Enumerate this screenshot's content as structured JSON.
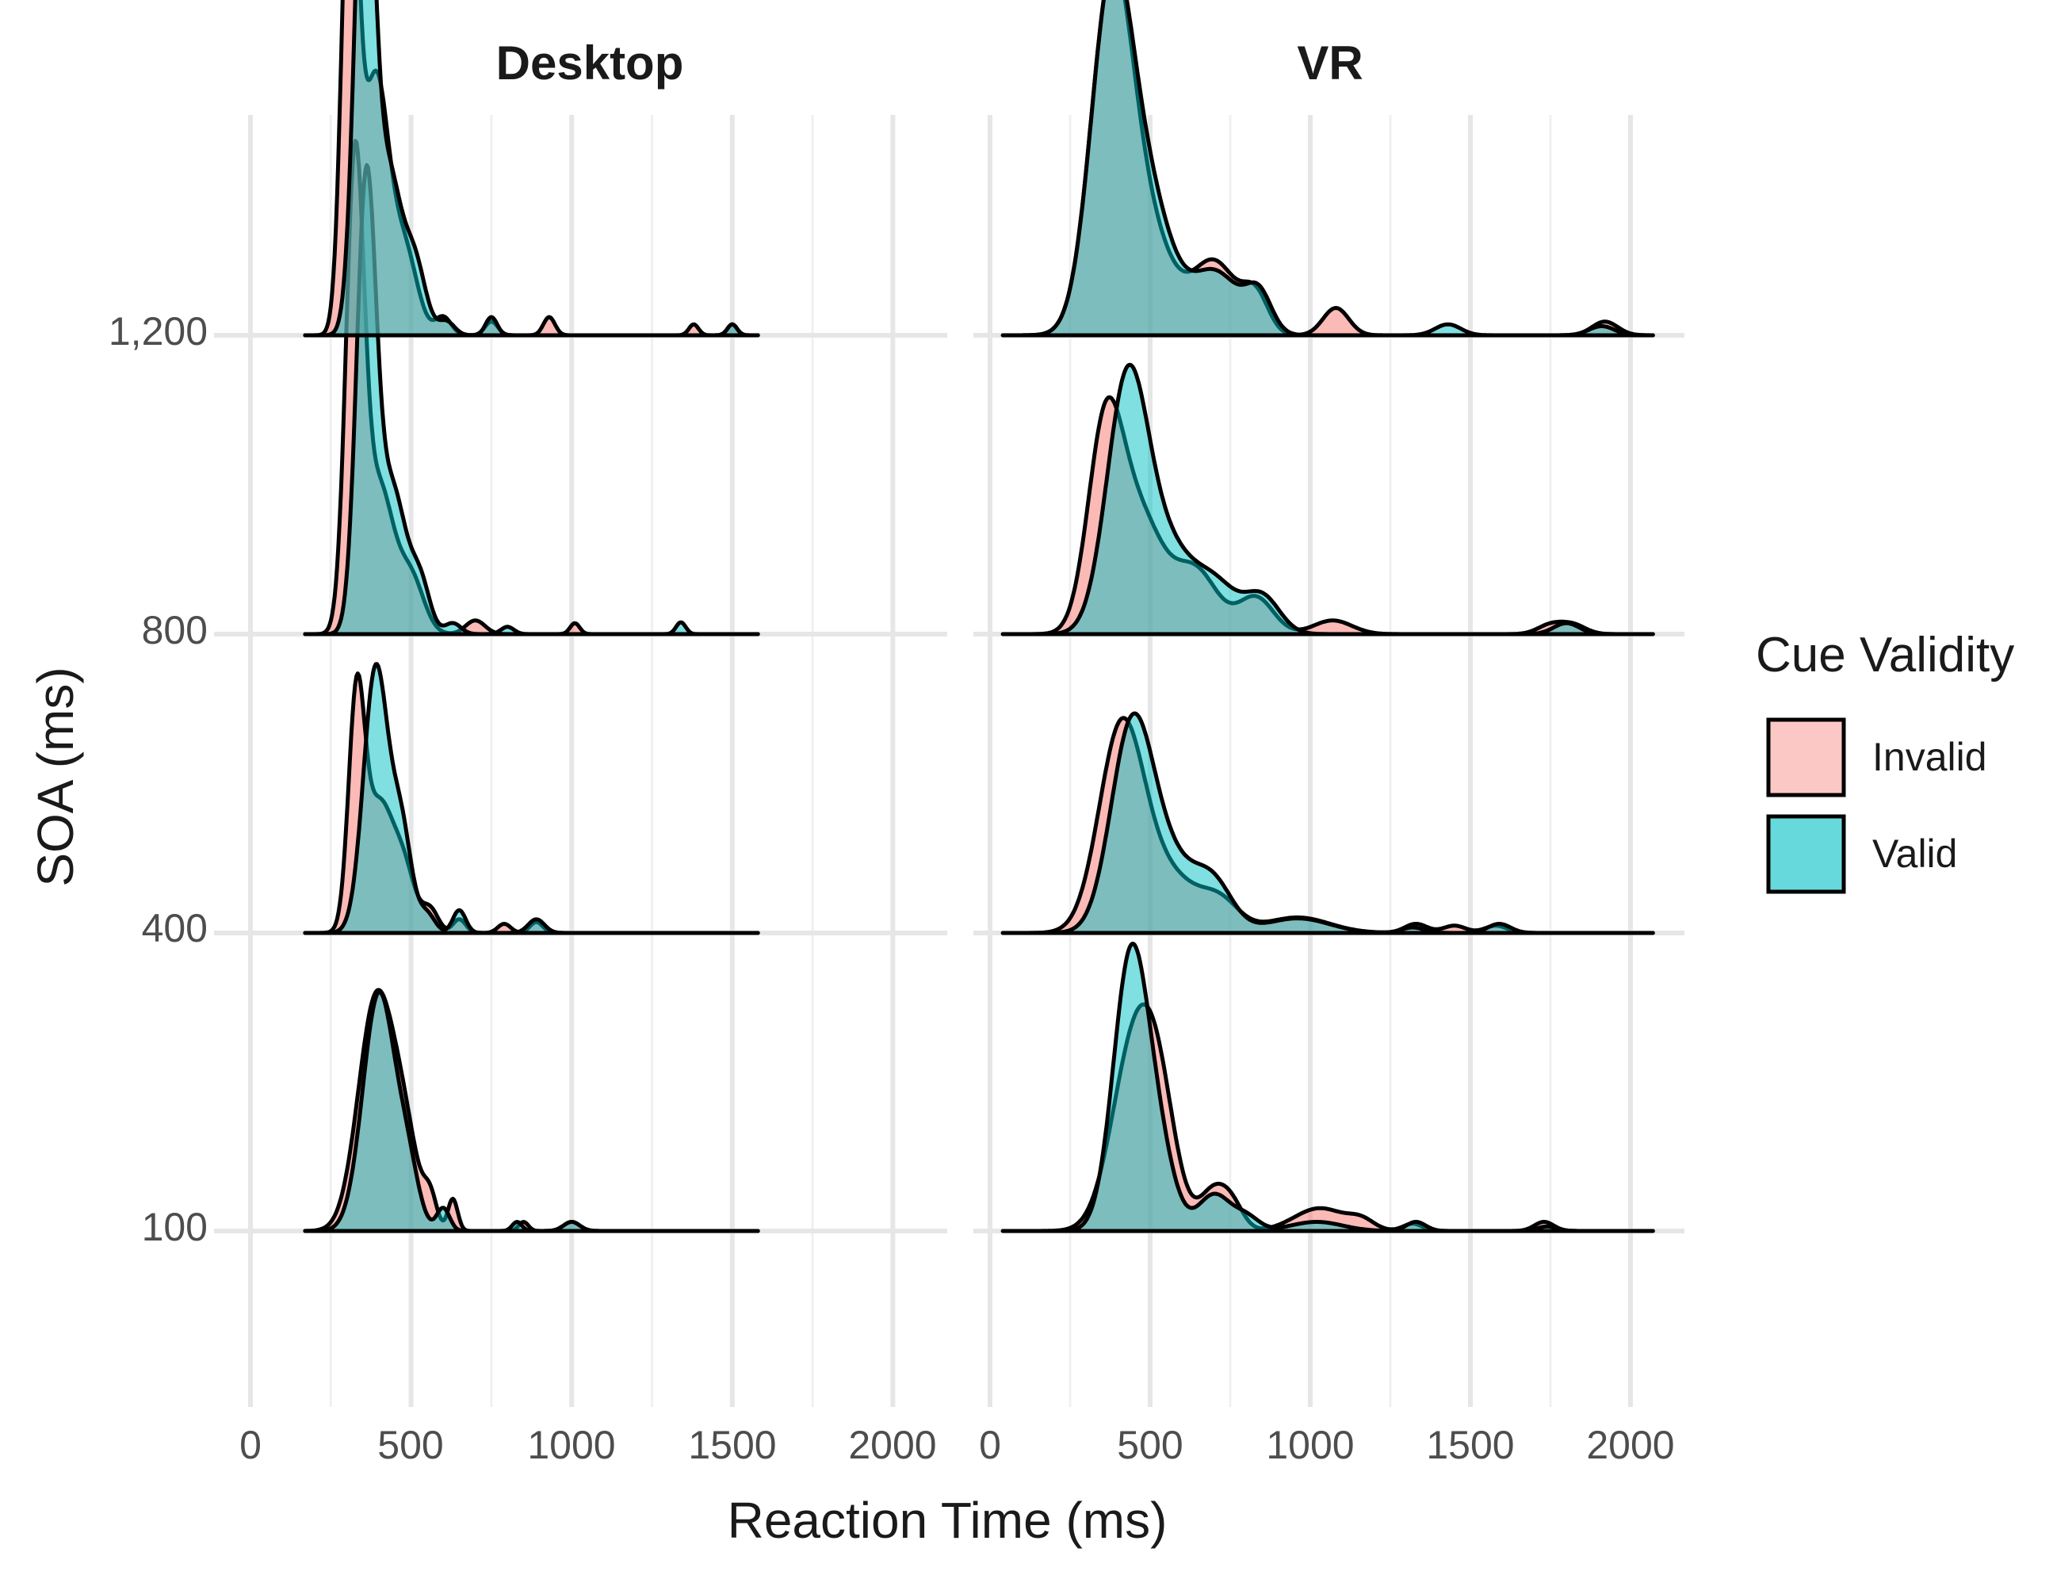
{
  "chart_data": {
    "type": "ridgeline-density",
    "xlabel": "Reaction Time (ms)",
    "ylabel": "SOA (ms)",
    "xlim": [
      0,
      2150
    ],
    "x_ticks": [
      0,
      500,
      1000,
      1500,
      2000
    ],
    "y_categories": [
      100,
      400,
      800,
      1200
    ],
    "y_tick_labels": [
      "100",
      "400",
      "800",
      "1,200"
    ],
    "legend": {
      "title": "Cue Validity",
      "entries": [
        {
          "name": "Invalid",
          "color": "#F8766D"
        },
        {
          "name": "Valid",
          "color": "#00BFC4"
        }
      ]
    },
    "fill_alpha": 0.5,
    "panels": [
      {
        "title": "Desktop",
        "x_range": [
          170,
          1580
        ],
        "ridges": [
          {
            "soa": "100",
            "series": [
              {
                "name": "Invalid",
                "peaks": [
                  [
                    390,
                    0.25,
                    55
                  ],
                  [
                    480,
                    0.09,
                    45
                  ],
                  [
                    630,
                    0.035,
                    15
                  ],
                  [
                    560,
                    0.03,
                    20
                  ],
                  [
                    850,
                    0.01,
                    15
                  ],
                  [
                    1000,
                    0.01,
                    25
                  ]
                ]
              },
              {
                "name": "Valid",
                "peaks": [
                  [
                    400,
                    0.26,
                    50
                  ],
                  [
                    490,
                    0.06,
                    35
                  ],
                  [
                    600,
                    0.025,
                    20
                  ],
                  [
                    830,
                    0.01,
                    15
                  ],
                  [
                    1000,
                    0.01,
                    25
                  ]
                ]
              }
            ]
          },
          {
            "soa": "400",
            "series": [
              {
                "name": "Invalid",
                "peaks": [
                  [
                    330,
                    0.24,
                    25
                  ],
                  [
                    400,
                    0.14,
                    45
                  ],
                  [
                    480,
                    0.06,
                    35
                  ],
                  [
                    560,
                    0.025,
                    25
                  ],
                  [
                    650,
                    0.015,
                    20
                  ],
                  [
                    790,
                    0.01,
                    20
                  ],
                  [
                    890,
                    0.012,
                    20
                  ]
                ]
              },
              {
                "name": "Valid",
                "peaks": [
                  [
                    390,
                    0.29,
                    38
                  ],
                  [
                    470,
                    0.11,
                    32
                  ],
                  [
                    550,
                    0.02,
                    25
                  ],
                  [
                    650,
                    0.025,
                    20
                  ],
                  [
                    890,
                    0.015,
                    25
                  ]
                ]
              }
            ]
          },
          {
            "soa": "800",
            "series": [
              {
                "name": "Invalid",
                "peaks": [
                  [
                    325,
                    0.5,
                    28
                  ],
                  [
                    400,
                    0.16,
                    45
                  ],
                  [
                    500,
                    0.06,
                    40
                  ],
                  [
                    700,
                    0.015,
                    30
                  ],
                  [
                    1010,
                    0.012,
                    15
                  ]
                ]
              },
              {
                "name": "Valid",
                "peaks": [
                  [
                    360,
                    0.48,
                    30
                  ],
                  [
                    440,
                    0.16,
                    45
                  ],
                  [
                    530,
                    0.05,
                    30
                  ],
                  [
                    630,
                    0.012,
                    25
                  ],
                  [
                    800,
                    0.008,
                    20
                  ],
                  [
                    1340,
                    0.013,
                    15
                  ]
                ]
              }
            ]
          },
          {
            "soa": "1200",
            "series": [
              {
                "name": "Invalid",
                "peaks": [
                  [
                    310,
                    0.55,
                    25
                  ],
                  [
                    390,
                    0.28,
                    40
                  ],
                  [
                    480,
                    0.09,
                    40
                  ],
                  [
                    600,
                    0.02,
                    25
                  ],
                  [
                    750,
                    0.015,
                    20
                  ],
                  [
                    930,
                    0.02,
                    18
                  ],
                  [
                    1380,
                    0.012,
                    15
                  ],
                  [
                    1500,
                    0.012,
                    15
                  ]
                ]
              },
              {
                "name": "Valid",
                "peaks": [
                  [
                    355,
                    0.58,
                    30
                  ],
                  [
                    430,
                    0.17,
                    38
                  ],
                  [
                    510,
                    0.08,
                    35
                  ],
                  [
                    610,
                    0.015,
                    25
                  ],
                  [
                    750,
                    0.02,
                    18
                  ],
                  [
                    1500,
                    0.012,
                    15
                  ]
                ]
              }
            ]
          }
        ]
      },
      {
        "title": "VR",
        "x_range": [
          40,
          2070
        ],
        "ridges": [
          {
            "soa": "100",
            "series": [
              {
                "name": "Invalid",
                "peaks": [
                  [
                    450,
                    0.2,
                    70
                  ],
                  [
                    530,
                    0.1,
                    55
                  ],
                  [
                    700,
                    0.045,
                    45
                  ],
                  [
                    760,
                    0.02,
                    35
                  ],
                  [
                    1030,
                    0.025,
                    80
                  ],
                  [
                    1160,
                    0.01,
                    40
                  ],
                  [
                    1320,
                    0.008,
                    30
                  ],
                  [
                    1730,
                    0.01,
                    30
                  ]
                ]
              },
              {
                "name": "Valid",
                "peaks": [
                  [
                    440,
                    0.3,
                    55
                  ],
                  [
                    530,
                    0.07,
                    50
                  ],
                  [
                    700,
                    0.04,
                    50
                  ],
                  [
                    800,
                    0.015,
                    40
                  ],
                  [
                    1020,
                    0.01,
                    80
                  ],
                  [
                    1330,
                    0.01,
                    30
                  ],
                  [
                    1740,
                    0.005,
                    30
                  ]
                ]
              }
            ]
          },
          {
            "soa": "400",
            "series": [
              {
                "name": "Invalid",
                "peaks": [
                  [
                    410,
                    0.22,
                    70
                  ],
                  [
                    560,
                    0.06,
                    90
                  ],
                  [
                    720,
                    0.03,
                    60
                  ],
                  [
                    960,
                    0.017,
                    100
                  ],
                  [
                    1330,
                    0.01,
                    35
                  ],
                  [
                    1450,
                    0.008,
                    35
                  ],
                  [
                    1580,
                    0.008,
                    35
                  ]
                ]
              },
              {
                "name": "Valid",
                "peaks": [
                  [
                    440,
                    0.2,
                    65
                  ],
                  [
                    550,
                    0.08,
                    90
                  ],
                  [
                    700,
                    0.045,
                    60
                  ],
                  [
                    960,
                    0.016,
                    100
                  ],
                  [
                    1320,
                    0.006,
                    35
                  ],
                  [
                    1590,
                    0.01,
                    35
                  ]
                ]
              }
            ]
          },
          {
            "soa": "800",
            "series": [
              {
                "name": "Invalid",
                "peaks": [
                  [
                    360,
                    0.22,
                    55
                  ],
                  [
                    470,
                    0.12,
                    70
                  ],
                  [
                    640,
                    0.07,
                    70
                  ],
                  [
                    830,
                    0.04,
                    55
                  ],
                  [
                    1070,
                    0.015,
                    60
                  ],
                  [
                    1750,
                    0.01,
                    40
                  ],
                  [
                    1820,
                    0.01,
                    40
                  ]
                ]
              },
              {
                "name": "Valid",
                "peaks": [
                  [
                    430,
                    0.28,
                    65
                  ],
                  [
                    560,
                    0.08,
                    70
                  ],
                  [
                    700,
                    0.055,
                    70
                  ],
                  [
                    850,
                    0.04,
                    55
                  ],
                  [
                    1800,
                    0.012,
                    40
                  ]
                ]
              }
            ]
          },
          {
            "soa": "1200",
            "series": [
              {
                "name": "Invalid",
                "peaks": [
                  [
                    380,
                    0.38,
                    65
                  ],
                  [
                    500,
                    0.1,
                    75
                  ],
                  [
                    700,
                    0.08,
                    70
                  ],
                  [
                    830,
                    0.04,
                    40
                  ],
                  [
                    1080,
                    0.03,
                    40
                  ],
                  [
                    1920,
                    0.015,
                    40
                  ]
                ]
              },
              {
                "name": "Valid",
                "peaks": [
                  [
                    380,
                    0.38,
                    65
                  ],
                  [
                    500,
                    0.13,
                    70
                  ],
                  [
                    700,
                    0.07,
                    80
                  ],
                  [
                    840,
                    0.04,
                    40
                  ],
                  [
                    1430,
                    0.012,
                    40
                  ],
                  [
                    1910,
                    0.01,
                    40
                  ]
                ]
              }
            ]
          }
        ]
      }
    ]
  }
}
